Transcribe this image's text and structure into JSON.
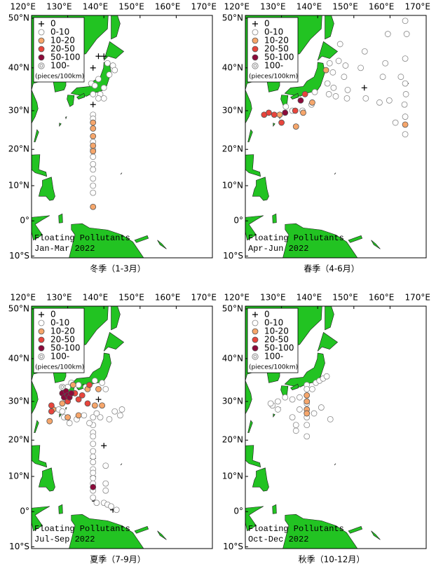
{
  "chart_data": [
    {
      "type": "scatter",
      "projection": "mercator",
      "caption": "冬季（1-3月）",
      "annotation": [
        "Floating Pollutants",
        "Jan-Mar 2022"
      ],
      "legend_title": "(pieces/100km)",
      "xlim": [
        120,
        170
      ],
      "ylim": [
        -10.5,
        50.5
      ],
      "xticks": [
        {
          "value": 120,
          "label": "120°E"
        },
        {
          "value": 130,
          "label": "130°E"
        },
        {
          "value": 140,
          "label": "140°E"
        },
        {
          "value": 150,
          "label": "150°E"
        },
        {
          "value": 160,
          "label": "160°E"
        },
        {
          "value": 170,
          "label": "170°E"
        }
      ],
      "yticks": [
        {
          "value": 50,
          "label": "50°N"
        },
        {
          "value": 40,
          "label": "40°N"
        },
        {
          "value": 30,
          "label": "30°N"
        },
        {
          "value": 20,
          "label": "20°N"
        },
        {
          "value": 10,
          "label": "10°N"
        },
        {
          "value": 0,
          "label": "0°"
        },
        {
          "value": -10,
          "label": "10°S"
        }
      ],
      "series": [
        {
          "name": "0",
          "marker": "plus",
          "color": "#000000",
          "x": [
            138.5,
            140,
            137,
            137
          ],
          "y": [
            42.5,
            42.5,
            40,
            31.5
          ]
        },
        {
          "name": "0-10",
          "marker": "circle",
          "color": "#ffffff",
          "x": [
            141,
            142.5,
            143,
            141.5,
            138.5,
            136.5,
            137.5,
            140,
            139,
            137,
            138.5,
            140,
            137,
            137,
            137,
            137,
            137,
            137,
            137,
            137,
            137,
            137
          ],
          "y": [
            41,
            40.5,
            39.5,
            38.5,
            37.5,
            36.5,
            36,
            35.5,
            34,
            34,
            33,
            33,
            29,
            28,
            22,
            20,
            18,
            16,
            14.5,
            12,
            10,
            8
          ]
        },
        {
          "name": "10-20",
          "marker": "circle",
          "color": "#f6a66b",
          "x": [
            137,
            137,
            137,
            137,
            137,
            137
          ],
          "y": [
            27,
            25.5,
            23.5,
            21,
            19.5,
            4
          ]
        },
        {
          "name": "20-50",
          "marker": "circle",
          "color": "#e8453c",
          "x": [],
          "y": []
        },
        {
          "name": "50-100",
          "marker": "circle",
          "color": "#8b0a3a",
          "x": [],
          "y": []
        },
        {
          "name": "100-",
          "marker": "double-circle",
          "color": "#ffffff",
          "x": [],
          "y": []
        }
      ]
    },
    {
      "type": "scatter",
      "projection": "mercator",
      "caption": "春季（4-6月）",
      "annotation": [
        "Floating Pollutants",
        "Apr-Jun 2022"
      ],
      "legend_title": "(pieces/100km)",
      "xlim": [
        120,
        170
      ],
      "ylim": [
        -10.5,
        50.5
      ],
      "xticks": [
        {
          "value": 120,
          "label": "120°E"
        },
        {
          "value": 130,
          "label": "130°E"
        },
        {
          "value": 140,
          "label": "140°E"
        },
        {
          "value": 150,
          "label": "150°E"
        },
        {
          "value": 160,
          "label": "160°E"
        },
        {
          "value": 170,
          "label": "170°E"
        }
      ],
      "yticks": [
        {
          "value": 50,
          "label": "50°N"
        },
        {
          "value": 40,
          "label": "40°N"
        },
        {
          "value": 30,
          "label": "30°N"
        },
        {
          "value": 20,
          "label": "20°N"
        },
        {
          "value": 10,
          "label": "10°N"
        },
        {
          "value": 0,
          "label": "0°"
        },
        {
          "value": -10,
          "label": "10°S"
        }
      ],
      "series": [
        {
          "name": "0",
          "marker": "plus",
          "color": "#000000",
          "x": [
            133,
            152.9,
            164.4
          ],
          "y": [
            39,
            35.5,
            36.5
          ]
        },
        {
          "name": "0-10",
          "marker": "circle",
          "color": "#ffffff",
          "x": [
            164.2,
            159.4,
            164.6,
            146.2,
            153,
            158.7,
            164.2,
            145.8,
            147.7,
            143.3,
            151.9,
            144.2,
            147.3,
            158,
            163,
            164.2,
            164.4,
            164,
            164.2,
            164.2,
            142.7,
            144.4,
            148.3,
            148.1,
            153.3,
            157.1,
            159.8,
            143.1,
            145,
            139.2,
            138.3,
            135.8,
            133,
            131.2,
            161.5
          ],
          "y": [
            49.5,
            47,
            47,
            45,
            43.5,
            41,
            42,
            41.5,
            40.5,
            41,
            40,
            39,
            38,
            38,
            38,
            36.5,
            34,
            31.5,
            28.5,
            24,
            36.5,
            35.5,
            35,
            33,
            33,
            32,
            32.5,
            34,
            33.5,
            34.5,
            31.5,
            30,
            30,
            31,
            27
          ]
        },
        {
          "name": "10-20",
          "marker": "circle",
          "color": "#f6a66b",
          "x": [
            142.3,
            138.5,
            136,
            134,
            164.2,
            129.5
          ],
          "y": [
            39.5,
            32,
            29.5,
            26,
            26.5,
            29
          ]
        },
        {
          "name": "20-50",
          "marker": "circle",
          "color": "#e8453c",
          "x": [
            125.2,
            126.5,
            128,
            130,
            133.8,
            136.5
          ],
          "y": [
            29,
            29.5,
            29,
            27,
            30,
            34
          ]
        },
        {
          "name": "50-100",
          "marker": "circle",
          "color": "#8b0a3a",
          "x": [
            131,
            135.3
          ],
          "y": [
            29.5,
            32.5
          ]
        },
        {
          "name": "100-",
          "marker": "double-circle",
          "color": "#ffffff",
          "x": [],
          "y": []
        }
      ]
    },
    {
      "type": "scatter",
      "projection": "mercator",
      "caption": "夏季（7-9月）",
      "annotation": [
        "Floating Pollutants",
        "Jul-Sep 2022"
      ],
      "legend_title": "(pieces/100km)",
      "xlim": [
        120,
        170
      ],
      "ylim": [
        -10.5,
        50.5
      ],
      "xticks": [
        {
          "value": 120,
          "label": "120°E"
        },
        {
          "value": 130,
          "label": "130°E"
        },
        {
          "value": 140,
          "label": "140°E"
        },
        {
          "value": 150,
          "label": "150°E"
        },
        {
          "value": 160,
          "label": "160°E"
        },
        {
          "value": 170,
          "label": "170°E"
        }
      ],
      "yticks": [
        {
          "value": 50,
          "label": "50°N"
        },
        {
          "value": 40,
          "label": "40°N"
        },
        {
          "value": 30,
          "label": "30°N"
        },
        {
          "value": 20,
          "label": "20°N"
        },
        {
          "value": 10,
          "label": "10°N"
        },
        {
          "value": 0,
          "label": "0°"
        },
        {
          "value": -10,
          "label": "10°S"
        }
      ],
      "series": [
        {
          "name": "0",
          "marker": "plus",
          "color": "#000000",
          "x": [
            138.5,
            140,
            137,
            137,
            137.5,
            142.5
          ],
          "y": [
            30.5,
            18.5,
            15,
            10,
            3,
            0.5
          ]
        },
        {
          "name": "0-10",
          "marker": "circle",
          "color": "#ffffff",
          "x": [
            137,
            137,
            137,
            137,
            137,
            137,
            137,
            137,
            137,
            137,
            137,
            137,
            137,
            137,
            138,
            140,
            141,
            142,
            143.5,
            140.5,
            140.5,
            140.5,
            141.5,
            139,
            138,
            143,
            145,
            144.5,
            130,
            131,
            133,
            135,
            137.5,
            139.5,
            140.5,
            130.5,
            129,
            127.5,
            128.5,
            132.5,
            134.5,
            136
          ],
          "y": [
            26,
            24,
            22,
            21,
            19,
            17,
            15.5,
            14,
            12,
            11,
            9.5,
            8,
            6,
            4,
            2.5,
            2.5,
            2,
            1.5,
            0.5,
            6,
            8,
            13,
            25.5,
            26,
            27,
            27.5,
            28,
            26.5,
            33.5,
            34.5,
            34,
            33.5,
            35,
            34.5,
            33,
            24.5,
            26,
            28,
            27.5,
            25.5,
            26.5,
            24.5
          ]
        },
        {
          "name": "10-20",
          "marker": "circle",
          "color": "#f6a66b",
          "x": [
            125,
            126,
            129,
            131.5,
            135.5,
            137.5,
            139.5,
            138.5,
            133,
            130,
            128.5
          ],
          "y": [
            25,
            28,
            32.5,
            34,
            33,
            29,
            29,
            33,
            26.5,
            26,
            29.5
          ]
        },
        {
          "name": "20-50",
          "marker": "circle",
          "color": "#e8453c",
          "x": [
            125.5,
            125.5,
            130,
            132,
            133,
            134,
            135.5,
            136
          ],
          "y": [
            29,
            27.5,
            30,
            32,
            30.5,
            31.5,
            29.5,
            34
          ]
        },
        {
          "name": "50-100",
          "marker": "circle",
          "color": "#8b0a3a",
          "x": [
            128.5,
            129,
            129.5,
            130,
            130.5,
            131,
            137
          ],
          "y": [
            32,
            31,
            32.5,
            31.5,
            31,
            32,
            7
          ]
        },
        {
          "name": "100-",
          "marker": "double-circle",
          "color": "#ffffff",
          "x": [
            128.5
          ],
          "y": [
            33.5
          ]
        }
      ]
    },
    {
      "type": "scatter",
      "projection": "mercator",
      "caption": "秋季（10-12月）",
      "annotation": [
        "Floating Pollutants",
        "Oct-Dec 2022"
      ],
      "legend_title": "(pieces/100km)",
      "xlim": [
        120,
        170
      ],
      "ylim": [
        -10.5,
        50.5
      ],
      "xticks": [
        {
          "value": 120,
          "label": "120°E"
        },
        {
          "value": 130,
          "label": "130°E"
        },
        {
          "value": 140,
          "label": "140°E"
        },
        {
          "value": 150,
          "label": "150°E"
        },
        {
          "value": 160,
          "label": "160°E"
        },
        {
          "value": 170,
          "label": "170°E"
        }
      ],
      "yticks": [
        {
          "value": 50,
          "label": "50°N"
        },
        {
          "value": 40,
          "label": "40°N"
        },
        {
          "value": 30,
          "label": "30°N"
        },
        {
          "value": 20,
          "label": "20°N"
        },
        {
          "value": 10,
          "label": "10°N"
        },
        {
          "value": 0,
          "label": "0°"
        },
        {
          "value": -10,
          "label": "10°S"
        }
      ],
      "series": [
        {
          "name": "0",
          "marker": "plus",
          "color": "#000000",
          "x": [],
          "y": []
        },
        {
          "name": "0-10",
          "marker": "circle",
          "color": "#ffffff",
          "x": [
            137,
            137,
            137,
            137,
            137,
            137,
            139.5,
            140.5,
            141.5,
            142.5,
            138.5,
            135,
            133,
            131,
            129,
            127.5,
            133,
            134,
            135,
            139,
            141,
            143.5,
            134,
            127,
            129
          ],
          "y": [
            34,
            33,
            29.5,
            26,
            24,
            21,
            34.5,
            35,
            35.5,
            36,
            33,
            31,
            30.5,
            31,
            30,
            29,
            26,
            24,
            28,
            27,
            28.5,
            25.5,
            22.5,
            29.5,
            28
          ]
        },
        {
          "name": "10-20",
          "marker": "circle",
          "color": "#f6a66b",
          "x": [
            137,
            137,
            137,
            137
          ],
          "y": [
            31.5,
            30,
            28,
            27
          ]
        },
        {
          "name": "20-50",
          "marker": "circle",
          "color": "#e8453c",
          "x": [],
          "y": []
        },
        {
          "name": "50-100",
          "marker": "circle",
          "color": "#8b0a3a",
          "x": [],
          "y": []
        },
        {
          "name": "100-",
          "marker": "double-circle",
          "color": "#ffffff",
          "x": [],
          "y": []
        }
      ]
    }
  ]
}
